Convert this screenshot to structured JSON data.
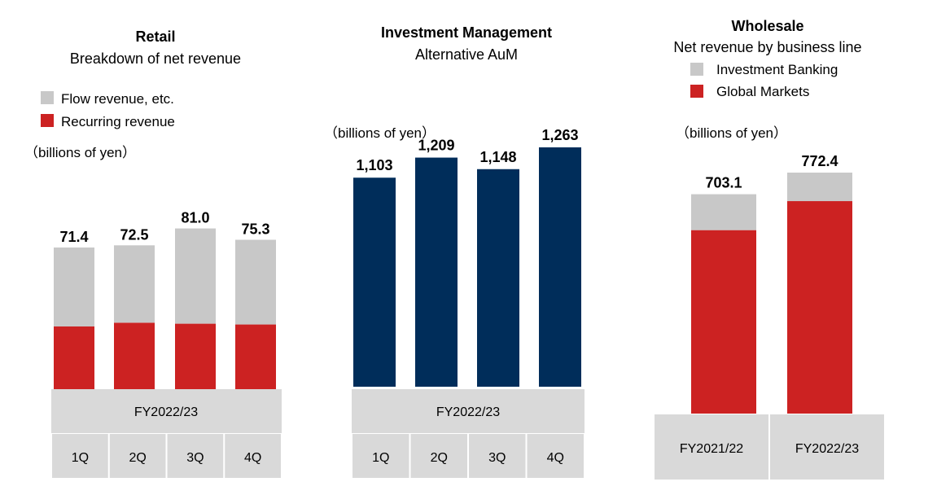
{
  "colors": {
    "flow_gray": "#c8c8c8",
    "recurring_red": "#cc2222",
    "navy": "#002d5a",
    "header_gray": "#d9d9d9",
    "divider": "#ffffff"
  },
  "chart_data": [
    {
      "type": "bar",
      "stacked": true,
      "title": "Retail",
      "subtitle": "Breakdown of net revenue",
      "unit": "（billions of yen）",
      "legend": [
        "Flow revenue, etc.",
        "Recurring revenue"
      ],
      "group_label": "FY2022/23",
      "categories": [
        "1Q",
        "2Q",
        "3Q",
        "4Q"
      ],
      "totals": [
        "71.4",
        "72.5",
        "81.0",
        "75.3"
      ],
      "series": [
        {
          "name": "Recurring revenue",
          "values": [
            31.6,
            33.5,
            33.0,
            32.6
          ]
        },
        {
          "name": "Flow revenue, etc.",
          "values": [
            39.8,
            39.0,
            48.0,
            42.7
          ]
        }
      ]
    },
    {
      "type": "bar",
      "title": "Investment Management",
      "subtitle": "Alternative AuM",
      "unit": "（billions of yen）",
      "group_label": "FY2022/23",
      "categories": [
        "1Q",
        "2Q",
        "3Q",
        "4Q"
      ],
      "values": [
        1103,
        1209,
        1148,
        1263
      ],
      "labels": [
        "1,103",
        "1,209",
        "1,148",
        "1,263"
      ]
    },
    {
      "type": "bar",
      "stacked": true,
      "title": "Wholesale",
      "subtitle": "Net revenue by business line",
      "unit": "（billions of yen）",
      "legend": [
        "Investment Banking",
        "Global Markets"
      ],
      "categories": [
        "FY2021/22",
        "FY2022/23"
      ],
      "totals": [
        "703.1",
        "772.4"
      ],
      "series": [
        {
          "name": "Global Markets",
          "values": [
            588.0,
            681.0
          ]
        },
        {
          "name": "Investment Banking",
          "values": [
            115.1,
            91.4
          ]
        }
      ]
    }
  ]
}
